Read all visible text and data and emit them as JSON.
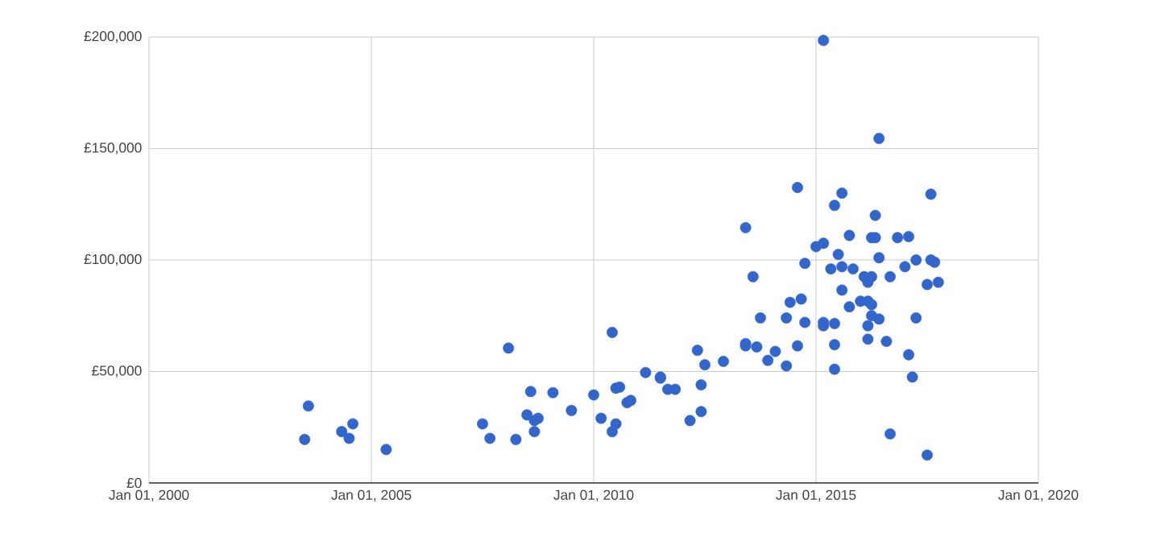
{
  "chart_data": {
    "type": "scatter",
    "color": "#3366cc",
    "marker": "circle",
    "grid": true,
    "x": [
      "2003-07",
      "2003-08",
      "2004-05",
      "2004-07",
      "2004-08",
      "2005-05",
      "2007-07",
      "2007-09",
      "2008-02",
      "2008-04",
      "2008-07",
      "2008-08",
      "2008-09",
      "2008-09",
      "2008-10",
      "2009-02",
      "2009-07",
      "2010-01",
      "2010-03",
      "2010-06",
      "2010-06",
      "2010-07",
      "2010-07",
      "2010-08",
      "2010-10",
      "2010-11",
      "2011-03",
      "2011-07",
      "2011-07",
      "2011-09",
      "2011-11",
      "2012-03",
      "2012-05",
      "2012-06",
      "2012-06",
      "2012-07",
      "2012-12",
      "2013-06",
      "2013-06",
      "2013-06",
      "2013-08",
      "2013-09",
      "2013-10",
      "2013-12",
      "2014-02",
      "2014-05",
      "2014-05",
      "2014-06",
      "2014-08",
      "2014-08",
      "2014-09",
      "2014-10",
      "2014-10",
      "2015-01",
      "2015-03",
      "2015-03",
      "2015-03",
      "2015-03",
      "2015-05",
      "2015-06",
      "2015-06",
      "2015-06",
      "2015-06",
      "2015-07",
      "2015-08",
      "2015-08",
      "2015-08",
      "2015-10",
      "2015-10",
      "2015-11",
      "2016-01",
      "2016-02",
      "2016-03",
      "2016-03",
      "2016-03",
      "2016-03",
      "2016-04",
      "2016-04",
      "2016-04",
      "2016-04",
      "2016-05",
      "2016-05",
      "2016-06",
      "2016-06",
      "2016-06",
      "2016-08",
      "2016-09",
      "2016-09",
      "2016-11",
      "2017-01",
      "2017-02",
      "2017-02",
      "2017-03",
      "2017-04",
      "2017-04",
      "2017-07",
      "2017-07",
      "2017-08",
      "2017-08",
      "2017-09",
      "2017-10"
    ],
    "values": [
      19500,
      34500,
      23000,
      20000,
      26500,
      15000,
      26500,
      20000,
      60500,
      19500,
      30500,
      41000,
      23000,
      28000,
      29000,
      40500,
      32500,
      39500,
      29000,
      23000,
      67500,
      42500,
      26500,
      43000,
      36000,
      37000,
      49500,
      47000,
      47500,
      42000,
      42000,
      28000,
      59500,
      32000,
      44000,
      53000,
      54500,
      114500,
      62500,
      61500,
      92500,
      61000,
      74000,
      55000,
      59000,
      52500,
      74000,
      81000,
      132500,
      61500,
      82500,
      98500,
      72000,
      106000,
      70500,
      198500,
      107500,
      72000,
      96000,
      124500,
      51000,
      71500,
      62000,
      102500,
      130000,
      97000,
      86500,
      111000,
      79000,
      96000,
      81500,
      92500,
      64500,
      81500,
      70500,
      90000,
      110000,
      92500,
      80000,
      75000,
      110000,
      120000,
      154500,
      101000,
      73500,
      63500,
      92500,
      22000,
      110000,
      97000,
      57500,
      110500,
      47500,
      74000,
      100000,
      89000,
      12500,
      129500,
      100000,
      99000,
      90000
    ],
    "xlim": [
      "2000",
      "2020"
    ],
    "xticks": [
      {
        "value": "2000",
        "label": "Jan 01, 2000"
      },
      {
        "value": "2005",
        "label": "Jan 01, 2005"
      },
      {
        "value": "2010",
        "label": "Jan 01, 2010"
      },
      {
        "value": "2015",
        "label": "Jan 01, 2015"
      },
      {
        "value": "2020",
        "label": "Jan 01, 2020"
      }
    ],
    "ylim": [
      0,
      200000
    ],
    "yticks": [
      {
        "value": 0,
        "label": "£0"
      },
      {
        "value": 50000,
        "label": "£50,000"
      },
      {
        "value": 100000,
        "label": "£100,000"
      },
      {
        "value": 150000,
        "label": "£150,000"
      },
      {
        "value": 200000,
        "label": "£200,000"
      }
    ]
  }
}
